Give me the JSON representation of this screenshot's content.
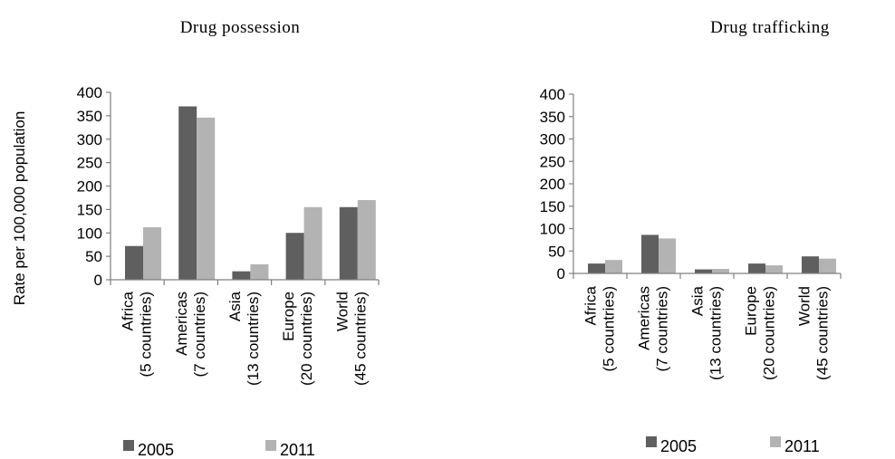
{
  "chart_data": [
    {
      "type": "bar",
      "title": "Drug possession",
      "ylabel": "Rate per 100,000 population",
      "ylim": [
        0,
        400
      ],
      "yticks": [
        0,
        50,
        100,
        150,
        200,
        250,
        300,
        350,
        400
      ],
      "categories": [
        [
          "Africa",
          "(5 countries)"
        ],
        [
          "Americas",
          "(7 countries)"
        ],
        [
          "Asia",
          "(13 countries)"
        ],
        [
          "Europe",
          "(20 countries)"
        ],
        [
          "World",
          "(45 countries)"
        ]
      ],
      "series": [
        {
          "name": "2005",
          "color": "#5f5f5f",
          "values": [
            72,
            370,
            18,
            100,
            155
          ]
        },
        {
          "name": "2011",
          "color": "#b3b3b3",
          "values": [
            112,
            346,
            33,
            155,
            170
          ]
        }
      ],
      "legend": "bottom"
    },
    {
      "type": "bar",
      "title": "Drug trafficking",
      "ylabel": "",
      "ylim": [
        0,
        400
      ],
      "yticks": [
        0,
        50,
        100,
        150,
        200,
        250,
        300,
        350,
        400
      ],
      "categories": [
        [
          "Africa",
          "(5 countries)"
        ],
        [
          "Americas",
          "(7 countries)"
        ],
        [
          "Asia",
          "(13 countries)"
        ],
        [
          "Europe",
          "(20 countries)"
        ],
        [
          "World",
          "(45 countries)"
        ]
      ],
      "series": [
        {
          "name": "2005",
          "color": "#5f5f5f",
          "values": [
            22,
            86,
            9,
            22,
            38
          ]
        },
        {
          "name": "2011",
          "color": "#b3b3b3",
          "values": [
            30,
            78,
            10,
            18,
            33
          ]
        }
      ],
      "legend": "bottom"
    }
  ]
}
